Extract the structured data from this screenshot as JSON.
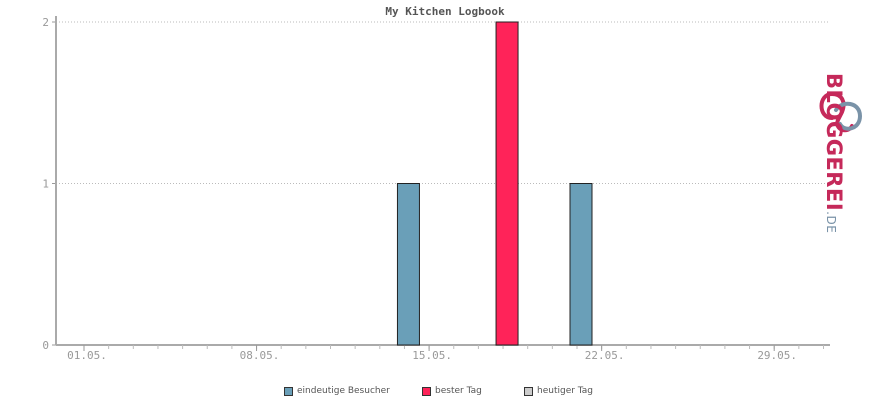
{
  "title": "My Kitchen Logbook",
  "chart_data": {
    "type": "bar",
    "x_ticks": [
      "01.05.",
      "08.05.",
      "15.05.",
      "22.05.",
      "29.05."
    ],
    "y_ticks": [
      "0",
      "1",
      "2"
    ],
    "ylim": [
      0,
      2
    ],
    "grid": true,
    "legend_position": "bottom-center",
    "bars": [
      {
        "date": "14.05.",
        "value": 1,
        "series": "eindeutige Besucher"
      },
      {
        "date": "18.05.",
        "value": 2,
        "series": "bester Tag"
      },
      {
        "date": "21.05.",
        "value": 1,
        "series": "eindeutige Besucher"
      }
    ],
    "series": [
      {
        "name": "eindeutige Besucher",
        "color": "#6a9fb8"
      },
      {
        "name": "bester Tag",
        "color": "#ff2359"
      },
      {
        "name": "heutiger Tag",
        "color": "#cccccc"
      }
    ]
  },
  "logo": {
    "name": "BLOGGEREI",
    "tld": ".DE",
    "icon": "bloggerei-logo-icon"
  }
}
